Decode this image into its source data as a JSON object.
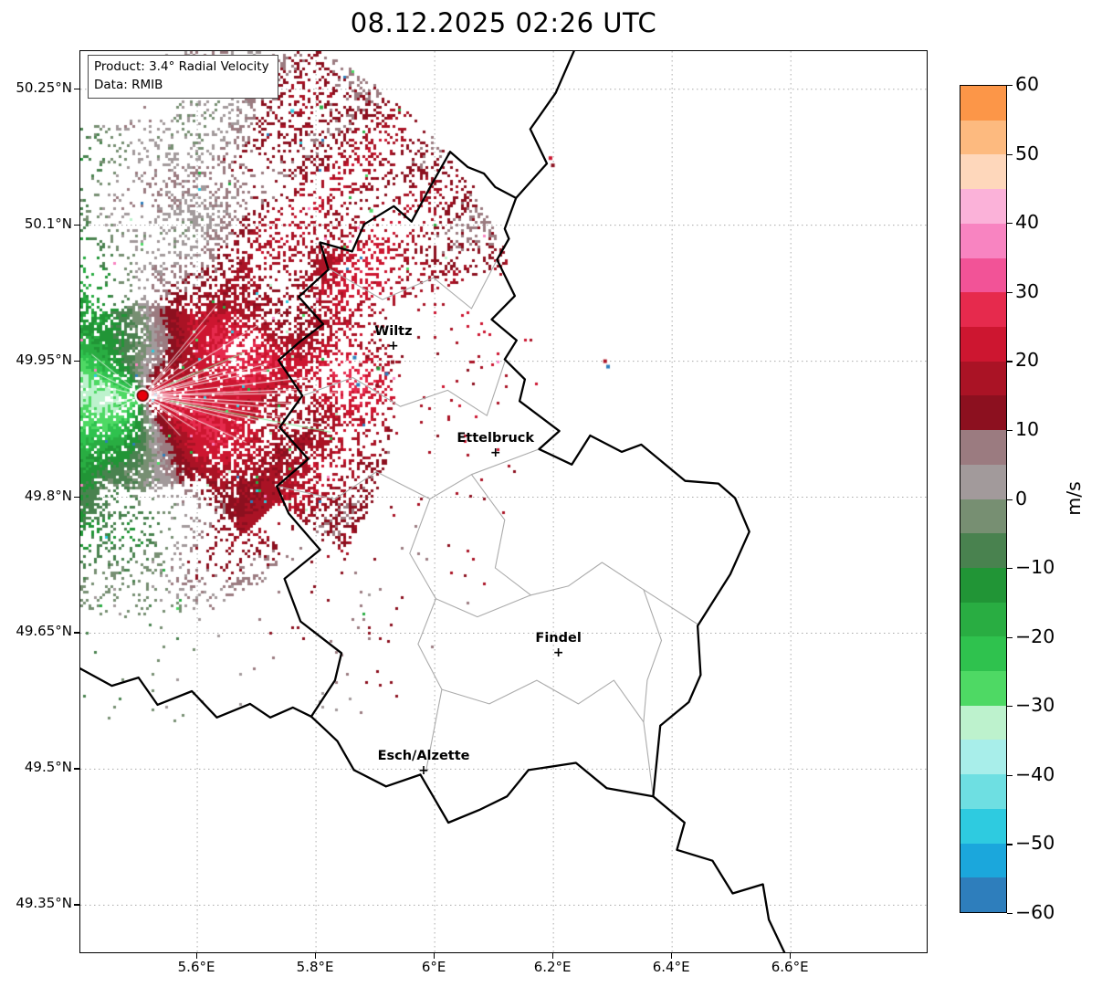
{
  "title": "08.12.2025 02:26 UTC",
  "info_box": {
    "product_line": "Product: 3.4° Radial Velocity",
    "data_line": "Data: RMIB"
  },
  "colorbar": {
    "unit_label": "m/s",
    "min": -60,
    "max": 60,
    "band_step": 5,
    "tick_values": [
      60,
      50,
      40,
      30,
      20,
      10,
      0,
      -10,
      -20,
      -30,
      -40,
      -50,
      -60
    ],
    "tick_labels": [
      "60",
      "50",
      "40",
      "30",
      "20",
      "10",
      "0",
      "−10",
      "−20",
      "−30",
      "−40",
      "−50",
      "−60"
    ],
    "band_colors_bottom_to_top": [
      "#2e7ebc",
      "#1ba7dc",
      "#2ecbe0",
      "#6edfe2",
      "#a8eeea",
      "#bdf2cd",
      "#4ed964",
      "#2fc24e",
      "#29ad42",
      "#219536",
      "#49824f",
      "#778f72",
      "#a29a9b",
      "#9b7b80",
      "#8c101f",
      "#aa1325",
      "#cd1630",
      "#e62a4d",
      "#f25397",
      "#f884c1",
      "#fbb2d9",
      "#fed7bb",
      "#fdba7f",
      "#fc9648"
    ]
  },
  "chart_data": {
    "type": "heatmap",
    "title": "08.12.2025 02:26 UTC",
    "product": "3.4° Radial Velocity",
    "source": "RMIB",
    "units": "m/s",
    "projection": {
      "lon_min": 5.403,
      "lon_max": 6.832,
      "lat_min": 49.296,
      "lat_max": 50.292
    },
    "axes": {
      "lat_ticks": [
        {
          "value": 50.25,
          "label": "50.25°N"
        },
        {
          "value": 50.1,
          "label": "50.1°N"
        },
        {
          "value": 49.95,
          "label": "49.95°N"
        },
        {
          "value": 49.8,
          "label": "49.8°N"
        },
        {
          "value": 49.65,
          "label": "49.65°N"
        },
        {
          "value": 49.5,
          "label": "49.5°N"
        },
        {
          "value": 49.35,
          "label": "49.35°N"
        }
      ],
      "lon_ticks": [
        {
          "value": 5.6,
          "label": "5.6°E"
        },
        {
          "value": 5.8,
          "label": "5.8°E"
        },
        {
          "value": 6.0,
          "label": "6°E"
        },
        {
          "value": 6.2,
          "label": "6.2°E"
        },
        {
          "value": 6.4,
          "label": "6.4°E"
        },
        {
          "value": 6.6,
          "label": "6.6°E"
        }
      ]
    },
    "grid": {
      "color": "#aaaaaa",
      "dash": "1.5 3.5"
    },
    "radar_site": {
      "lon": 5.508,
      "lat": 49.912,
      "marker_color": "#e8000b",
      "marker_edge": "#5a0000"
    },
    "velocity_field": {
      "description": "Doppler radial velocity dipole centred on the radar: inbound (negative, green, down to about -26 m/s) west of the radar, outbound (positive, red, up to about +23 m/s) east of the radar, near-zero grey/rosy values north and south, patchy dark-red echoes far to the north-east",
      "inbound_peak_ms": -26,
      "outbound_peak_ms": 23,
      "lobe_axis_deg": 5,
      "seed": 7,
      "anomaly_colors": [
        "#2e7ebc",
        "#4ed964",
        "#f884c1",
        "#2ecbe0",
        "#bdf2cd",
        "#29ad42"
      ]
    },
    "cities": [
      {
        "name": "Wiltz",
        "lon": 5.932,
        "lat": 49.966
      },
      {
        "name": "Ettelbruck",
        "lon": 6.104,
        "lat": 49.848
      },
      {
        "name": "Findel",
        "lon": 6.21,
        "lat": 49.627
      },
      {
        "name": "Esch/Alzette",
        "lon": 5.983,
        "lat": 49.497
      }
    ],
    "borders": {
      "country_stroke": "#000000",
      "country_width": 2.3,
      "region_stroke": "#ababab",
      "region_width": 1.1,
      "country_paths": [
        [
          [
            6.026,
            50.181
          ],
          [
            6.056,
            50.164
          ],
          [
            6.083,
            50.157
          ],
          [
            6.102,
            50.142
          ],
          [
            6.137,
            50.13
          ],
          [
            6.118,
            50.096
          ],
          [
            6.125,
            50.085
          ],
          [
            6.105,
            50.062
          ],
          [
            6.135,
            50.022
          ],
          [
            6.096,
            49.996
          ],
          [
            6.138,
            49.973
          ],
          [
            6.118,
            49.952
          ],
          [
            6.152,
            49.93
          ],
          [
            6.143,
            49.906
          ],
          [
            6.21,
            49.873
          ],
          [
            6.176,
            49.853
          ],
          [
            6.231,
            49.836
          ],
          [
            6.262,
            49.868
          ],
          [
            6.315,
            49.85
          ],
          [
            6.348,
            49.858
          ],
          [
            6.422,
            49.818
          ],
          [
            6.478,
            49.815
          ],
          [
            6.506,
            49.799
          ],
          [
            6.53,
            49.762
          ],
          [
            6.498,
            49.715
          ],
          [
            6.443,
            49.658
          ],
          [
            6.448,
            49.604
          ],
          [
            6.428,
            49.574
          ],
          [
            6.38,
            49.548
          ],
          [
            6.368,
            49.47
          ],
          [
            6.29,
            49.479
          ],
          [
            6.238,
            49.507
          ],
          [
            6.158,
            49.499
          ],
          [
            6.122,
            49.47
          ],
          [
            6.075,
            49.455
          ],
          [
            6.023,
            49.441
          ],
          [
            5.976,
            49.494
          ],
          [
            5.918,
            49.481
          ],
          [
            5.864,
            49.499
          ],
          [
            5.836,
            49.531
          ],
          [
            5.815,
            49.544
          ],
          [
            5.792,
            49.558
          ],
          [
            5.832,
            49.598
          ],
          [
            5.843,
            49.628
          ],
          [
            5.774,
            49.663
          ],
          [
            5.747,
            49.71
          ],
          [
            5.807,
            49.742
          ],
          [
            5.754,
            49.782
          ],
          [
            5.734,
            49.812
          ],
          [
            5.787,
            49.842
          ],
          [
            5.739,
            49.877
          ],
          [
            5.777,
            49.912
          ],
          [
            5.737,
            49.951
          ],
          [
            5.772,
            49.971
          ],
          [
            5.812,
            49.991
          ],
          [
            5.771,
            50.021
          ],
          [
            5.821,
            50.051
          ],
          [
            5.807,
            50.081
          ],
          [
            5.861,
            50.071
          ],
          [
            5.881,
            50.101
          ],
          [
            5.931,
            50.121
          ],
          [
            5.961,
            50.104
          ],
          [
            5.994,
            50.144
          ],
          [
            6.026,
            50.181
          ]
        ],
        [
          [
            6.137,
            50.13
          ],
          [
            6.189,
            50.168
          ],
          [
            6.161,
            50.206
          ],
          [
            6.204,
            50.246
          ],
          [
            6.236,
            50.294
          ]
        ],
        [
          [
            5.4,
            49.612
          ],
          [
            5.456,
            49.592
          ],
          [
            5.501,
            49.601
          ],
          [
            5.533,
            49.571
          ],
          [
            5.591,
            49.586
          ],
          [
            5.633,
            49.557
          ],
          [
            5.689,
            49.572
          ],
          [
            5.723,
            49.557
          ],
          [
            5.761,
            49.568
          ],
          [
            5.792,
            49.558
          ]
        ],
        [
          [
            6.368,
            49.47
          ],
          [
            6.421,
            49.441
          ],
          [
            6.408,
            49.411
          ],
          [
            6.468,
            49.399
          ],
          [
            6.502,
            49.363
          ],
          [
            6.553,
            49.373
          ],
          [
            6.563,
            49.334
          ],
          [
            6.592,
            49.294
          ]
        ]
      ],
      "region_paths": [
        [
          [
            5.822,
            50.052
          ],
          [
            5.912,
            50.018
          ],
          [
            5.998,
            50.042
          ],
          [
            6.062,
            50.008
          ],
          [
            6.105,
            50.062
          ]
        ],
        [
          [
            5.778,
            49.912
          ],
          [
            5.862,
            49.932
          ],
          [
            5.942,
            49.9
          ],
          [
            6.022,
            49.918
          ],
          [
            6.088,
            49.89
          ],
          [
            6.12,
            49.953
          ]
        ],
        [
          [
            5.735,
            49.812
          ],
          [
            5.832,
            49.798
          ],
          [
            5.902,
            49.828
          ],
          [
            5.992,
            49.798
          ],
          [
            6.062,
            49.825
          ],
          [
            6.176,
            49.853
          ]
        ],
        [
          [
            5.992,
            49.798
          ],
          [
            5.958,
            49.738
          ],
          [
            6.002,
            49.688
          ],
          [
            5.972,
            49.638
          ],
          [
            6.012,
            49.588
          ],
          [
            5.985,
            49.497
          ]
        ],
        [
          [
            6.062,
            49.825
          ],
          [
            6.118,
            49.775
          ],
          [
            6.102,
            49.722
          ],
          [
            6.162,
            49.692
          ],
          [
            6.225,
            49.702
          ],
          [
            6.282,
            49.728
          ],
          [
            6.352,
            49.698
          ],
          [
            6.443,
            49.66
          ]
        ],
        [
          [
            6.002,
            49.688
          ],
          [
            6.072,
            49.668
          ],
          [
            6.162,
            49.692
          ]
        ],
        [
          [
            6.012,
            49.588
          ],
          [
            6.092,
            49.572
          ],
          [
            6.172,
            49.598
          ],
          [
            6.242,
            49.572
          ],
          [
            6.302,
            49.598
          ],
          [
            6.352,
            49.552
          ],
          [
            6.368,
            49.47
          ]
        ],
        [
          [
            6.352,
            49.698
          ],
          [
            6.382,
            49.642
          ],
          [
            6.358,
            49.598
          ],
          [
            6.352,
            49.552
          ]
        ]
      ]
    },
    "echo_specks": [
      {
        "lon": 6.284,
        "lat": 49.952,
        "color": "#aa1325"
      },
      {
        "lon": 6.289,
        "lat": 49.946,
        "color": "#2e7ebc"
      },
      {
        "lon": 6.192,
        "lat": 50.176,
        "color": "#cd1630"
      },
      {
        "lon": 6.196,
        "lat": 50.168,
        "color": "#8c101f"
      },
      {
        "lon": 5.757,
        "lat": 50.228,
        "color": "#2ecbe0"
      },
      {
        "lon": 5.806,
        "lat": 50.232,
        "color": "#29ad42"
      },
      {
        "lon": 5.89,
        "lat": 50.118,
        "color": "#4ed964"
      },
      {
        "lon": 5.862,
        "lat": 49.956,
        "color": "#2e7ebc"
      },
      {
        "lon": 5.872,
        "lat": 49.948,
        "color": "#aa1325"
      },
      {
        "lon": 5.884,
        "lat": 49.957,
        "color": "#8c101f"
      },
      {
        "lon": 5.902,
        "lat": 49.944,
        "color": "#219536"
      },
      {
        "lon": 5.916,
        "lat": 49.938,
        "color": "#2e7ebc"
      },
      {
        "lon": 5.926,
        "lat": 49.951,
        "color": "#8c101f"
      },
      {
        "lon": 5.868,
        "lat": 49.926,
        "color": "#2e7ebc"
      },
      {
        "lon": 5.9,
        "lat": 49.925,
        "color": "#8c101f"
      }
    ]
  }
}
